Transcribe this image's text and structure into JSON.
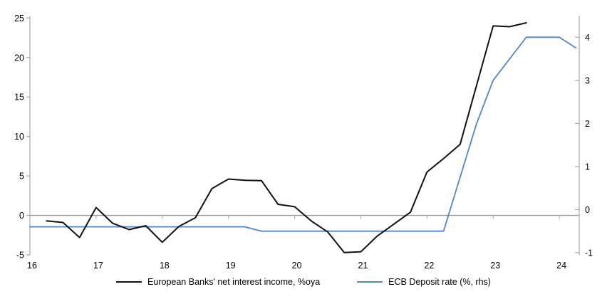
{
  "chart_data": {
    "type": "line",
    "title": "",
    "x_axis": {
      "tick_labels": [
        "16",
        "17",
        "18",
        "19",
        "20",
        "21",
        "22",
        "23",
        "24"
      ],
      "tick_values": [
        16,
        17,
        18,
        19,
        20,
        21,
        22,
        23,
        24
      ],
      "range": [
        16,
        24.3
      ]
    },
    "left_axis": {
      "tick_labels": [
        "-5",
        "0",
        "5",
        "10",
        "15",
        "20",
        "25"
      ],
      "tick_values": [
        -5,
        0,
        5,
        10,
        15,
        20,
        25
      ],
      "range": [
        -5,
        25.3
      ]
    },
    "right_axis": {
      "tick_labels": [
        "-1",
        "0",
        "1",
        "2",
        "3",
        "4"
      ],
      "tick_values": [
        -1,
        0,
        1,
        2,
        3,
        4
      ],
      "range": [
        -1.05,
        4.5
      ]
    },
    "grid": false,
    "zero_line": true,
    "legend_position": "bottom",
    "series": [
      {
        "name": "European Banks' net interest income, %oya",
        "axis": "left",
        "color": "#111111",
        "line_width": 2,
        "points": [
          [
            16.25,
            -0.7
          ],
          [
            16.5,
            -0.9
          ],
          [
            16.75,
            -2.8
          ],
          [
            17.0,
            1.0
          ],
          [
            17.25,
            -1.0
          ],
          [
            17.5,
            -1.8
          ],
          [
            17.75,
            -1.3
          ],
          [
            18.0,
            -3.4
          ],
          [
            18.25,
            -1.4
          ],
          [
            18.5,
            -0.3
          ],
          [
            18.75,
            3.4
          ],
          [
            19.0,
            4.6
          ],
          [
            19.25,
            4.45
          ],
          [
            19.5,
            4.4
          ],
          [
            19.75,
            1.4
          ],
          [
            20.0,
            1.1
          ],
          [
            20.25,
            -0.7
          ],
          [
            20.5,
            -2.1
          ],
          [
            20.75,
            -4.7
          ],
          [
            21.0,
            -4.6
          ],
          [
            21.25,
            -2.6
          ],
          [
            21.5,
            -1.1
          ],
          [
            21.75,
            0.4
          ],
          [
            22.0,
            5.5
          ],
          [
            22.25,
            7.2
          ],
          [
            22.5,
            9.0
          ],
          [
            22.75,
            16.5
          ],
          [
            23.0,
            24.0
          ],
          [
            23.25,
            23.9
          ],
          [
            23.5,
            24.4
          ]
        ]
      },
      {
        "name": "ECB Deposit rate (%, rhs)",
        "axis": "right",
        "color": "#4f86c6",
        "line_width": 1.8,
        "points": [
          [
            16.0,
            -0.4
          ],
          [
            16.25,
            -0.4
          ],
          [
            16.5,
            -0.4
          ],
          [
            16.75,
            -0.4
          ],
          [
            17.0,
            -0.4
          ],
          [
            17.25,
            -0.4
          ],
          [
            17.5,
            -0.4
          ],
          [
            17.75,
            -0.4
          ],
          [
            18.0,
            -0.4
          ],
          [
            18.25,
            -0.4
          ],
          [
            18.5,
            -0.4
          ],
          [
            18.75,
            -0.4
          ],
          [
            19.0,
            -0.4
          ],
          [
            19.25,
            -0.4
          ],
          [
            19.5,
            -0.5
          ],
          [
            19.75,
            -0.5
          ],
          [
            20.0,
            -0.5
          ],
          [
            20.25,
            -0.5
          ],
          [
            20.5,
            -0.5
          ],
          [
            20.75,
            -0.5
          ],
          [
            21.0,
            -0.5
          ],
          [
            21.25,
            -0.5
          ],
          [
            21.5,
            -0.5
          ],
          [
            21.75,
            -0.5
          ],
          [
            22.0,
            -0.5
          ],
          [
            22.25,
            -0.5
          ],
          [
            22.5,
            0.75
          ],
          [
            22.75,
            2.0
          ],
          [
            23.0,
            3.0
          ],
          [
            23.25,
            3.5
          ],
          [
            23.5,
            4.0
          ],
          [
            23.75,
            4.0
          ],
          [
            24.0,
            4.0
          ],
          [
            24.25,
            3.75
          ]
        ]
      }
    ]
  },
  "legend": {
    "items": [
      {
        "label": "European Banks' net interest income, %oya",
        "color": "#111111"
      },
      {
        "label": "ECB Deposit rate (%, rhs)",
        "color": "#4f86c6"
      }
    ]
  },
  "colors": {
    "axis": "#a6a6a6",
    "zero_line": "#9b9b9b",
    "background": "#ffffff",
    "text": "#000000"
  }
}
